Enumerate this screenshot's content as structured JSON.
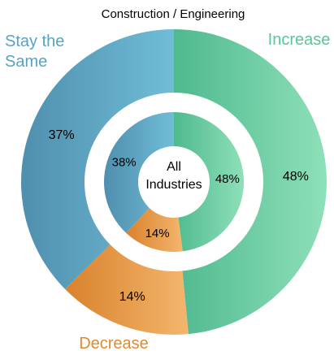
{
  "chart_data": {
    "type": "pie",
    "title": "Construction / Engineering",
    "center_label": [
      "All",
      "Industries"
    ],
    "categories": [
      "Increase",
      "Decrease",
      "Stay the Same"
    ],
    "series": [
      {
        "name": "Construction / Engineering",
        "ring": "outer",
        "values": [
          48,
          14,
          37
        ],
        "labels": [
          "48%",
          "14%",
          "37%"
        ]
      },
      {
        "name": "All Industries",
        "ring": "inner",
        "values": [
          48,
          14,
          38
        ],
        "labels": [
          "48%",
          "14%",
          "38%"
        ]
      }
    ],
    "category_labels": [
      "Increase",
      "Decrease",
      "Stay the\nSame"
    ],
    "colors": {
      "increase": [
        "#4fb98f",
        "#8ee0b9"
      ],
      "decrease": [
        "#d9822c",
        "#f3b66e"
      ],
      "stay": [
        "#4f8fae",
        "#70bdd8"
      ],
      "label_increase": "#5cc498",
      "label_decrease": "#e08a30",
      "label_stay": "#58a3c4"
    }
  }
}
